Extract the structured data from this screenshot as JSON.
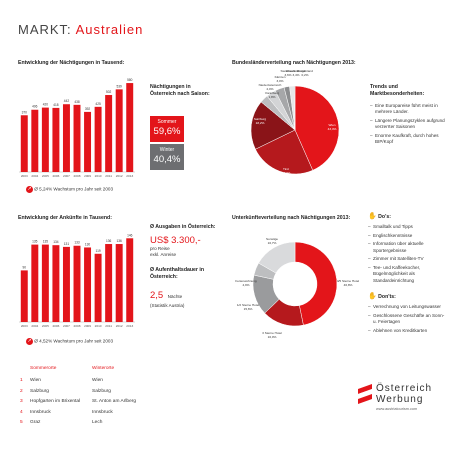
{
  "header": {
    "title_prefix": "MARKT: ",
    "title_country": "Australien"
  },
  "colors": {
    "accent": "#e3151a",
    "dark_red": "#a5141a",
    "grey": "#6d6e71",
    "light_grey": "#c8c9cb"
  },
  "naechtigungen": {
    "section_title": "Entwicklung der Nächtigungen in Tausend:",
    "growth": "Ø 5,24% Wachstum pro Jahr seit 2003",
    "season_title": "Nächtigungen in Österreich nach Saison:",
    "summer_label": "Sommer",
    "summer_value": "59,6%",
    "winter_label": "Winter",
    "winter_value": "40,4%"
  },
  "ankuenfte": {
    "section_title": "Entwicklung der Ankünfte in Tausend:",
    "growth": "Ø 4,52% Wachstum pro Jahr seit 2003",
    "spend_title": "Ø Ausgaben in Österreich:",
    "spend_value": "US$ 3.300,-",
    "spend_sub1": "pro Reise",
    "spend_sub2": "exkl. Anreise",
    "stay_title": "Ø Aufenthaltsdauer in Österreich:",
    "stay_value": "2,5",
    "stay_unit": "Nächte",
    "stay_source": "(Statistik Austria)"
  },
  "bundesland": {
    "section_title": "Bundesländerverteilung nach Nächtigungen 2013:"
  },
  "unterkunft": {
    "section_title": "Unterkünfteverteilung nach Nächtigungen 2013:"
  },
  "trends": {
    "title": "Trends und Marktbesonderheiten:",
    "items": [
      "Eine Europareise führt meist in mehrere Länder.",
      "Längere Planungszyklen aufgrund verzerrter Saisonen",
      "Enorme Kaufkraft, durch hohes BIP/Kopf"
    ]
  },
  "dos": {
    "title": "Do's:",
    "items": [
      "Smalltalk und Tipps",
      "Englischkenntnisse",
      "Information über aktuelle Sportergebnisse",
      "Zimmer mit Satelliten-TV",
      "Tee- und Kaffeekocher, Bügelmöglichkeit als Standardeinrichtung"
    ]
  },
  "donts": {
    "title": "Don'ts:",
    "items": [
      "Verrechnung von Leitungswasser",
      "Geschlossene Geschäfte an Sonn- u. Feiertagen",
      "Ablehnen von Kreditkarten"
    ]
  },
  "ranking": {
    "col_summer": "Sommerorte",
    "col_winter": "Winterorte",
    "rows": [
      {
        "rank": "1",
        "summer": "Wien",
        "winter": "Wien"
      },
      {
        "rank": "2",
        "summer": "Salzburg",
        "winter": "Salzburg"
      },
      {
        "rank": "3",
        "summer": "Hopfgarten im Brixental",
        "winter": "St. Anton am Arlberg"
      },
      {
        "rank": "4",
        "summer": "Innsbruck",
        "winter": "Innsbruck"
      },
      {
        "rank": "5",
        "summer": "Graz",
        "winter": "Lech"
      }
    ]
  },
  "logo": {
    "line1": "Österreich",
    "line2": "Werbung",
    "url": "www.austriatourism.com"
  },
  "chart_data": [
    {
      "type": "bar",
      "title": "Entwicklung der Nächtigungen in Tausend:",
      "categories": [
        "2003",
        "2004",
        "2005",
        "2006",
        "2007",
        "2008",
        "2009",
        "2010",
        "2011",
        "2012",
        "2013"
      ],
      "values": [
        370,
        406,
        420,
        418,
        442,
        438,
        392,
        425,
        502,
        539,
        580
      ],
      "ylim": [
        0,
        600
      ]
    },
    {
      "type": "bar",
      "title": "Entwicklung der Ankünfte in Tausend:",
      "categories": [
        "2003",
        "2004",
        "2005",
        "2006",
        "2007",
        "2008",
        "2009",
        "2010",
        "2011",
        "2012",
        "2013"
      ],
      "values": [
        90,
        135,
        135,
        134,
        131,
        133,
        130,
        119,
        136,
        136,
        146
      ],
      "ylim": [
        0,
        150
      ]
    },
    {
      "type": "pie",
      "title": "Bundesländerverteilung nach Nächtigungen 2013:",
      "labels": [
        "Wien",
        "Tirol",
        "Salzburg",
        "Kärnten",
        "Steiermark",
        "Oberösterreich",
        "Niederösterreich",
        "Vorarlberg",
        "Burgenland"
      ],
      "values": [
        43.4,
        24.4,
        18.2,
        3.0,
        3.6,
        3.4,
        2.0,
        1.8,
        0.2
      ],
      "value_labels": [
        "43,4%",
        "24,4%",
        "18,2%",
        "3,0%",
        "3,6%",
        "3,4%",
        "2,0%",
        "1,8%",
        "0,2%"
      ]
    },
    {
      "type": "pie",
      "title": "Unterkünfteverteilung nach Nächtigungen 2013:",
      "labels": [
        "4/5 Sterne Hotel",
        "3 Sterne Hotel",
        "1/2 Sterne Hotel",
        "Ferienwohnung",
        "Sonstige"
      ],
      "values": [
        46.8,
        16.0,
        15.6,
        4.9,
        16.7
      ],
      "value_labels": [
        "46,8%",
        "16,0%",
        "15,6%",
        "4,9%",
        "16,7%"
      ]
    }
  ]
}
